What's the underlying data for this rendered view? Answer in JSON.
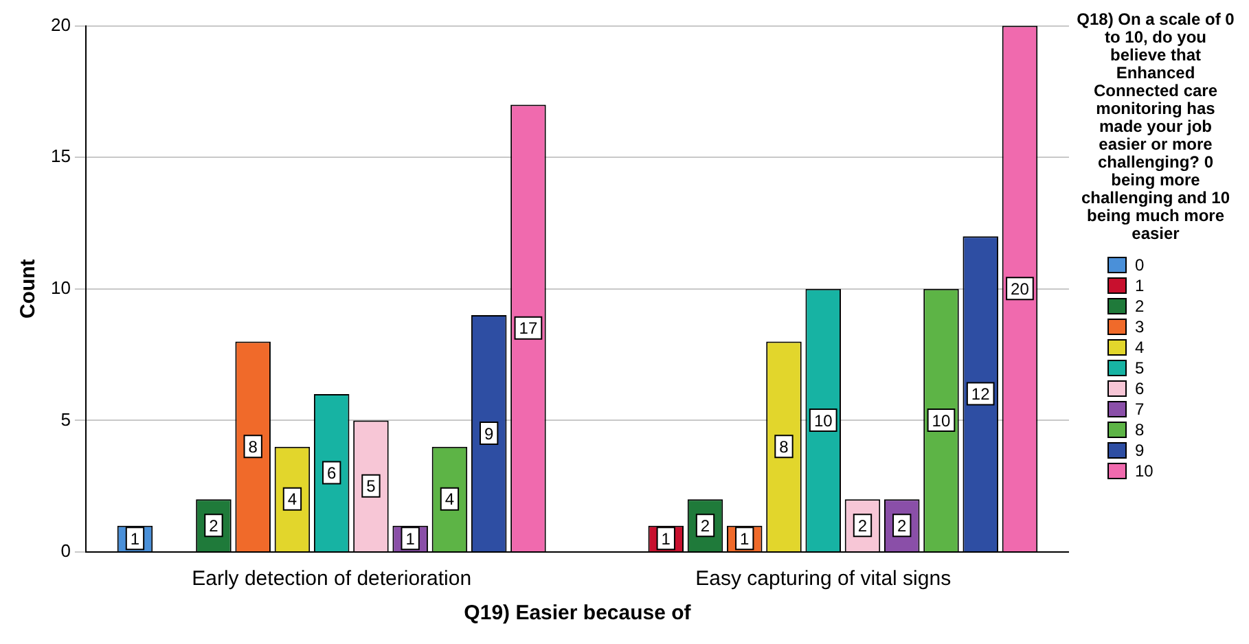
{
  "chart_data": {
    "type": "bar",
    "xlabel": "Q19) Easier because of",
    "ylabel": "Count",
    "legend_title": "Q18) On a scale of 0 to 10, do you believe that Enhanced Connected care monitoring has made your job easier or more challenging? 0 being more challenging and 10 being much more easier",
    "categories": [
      "Early detection of deterioration",
      "Easy capturing of vital signs"
    ],
    "series": [
      {
        "name": "0",
        "color": "#4a90d9",
        "values": [
          1,
          null
        ]
      },
      {
        "name": "1",
        "color": "#c8102e",
        "values": [
          null,
          1
        ]
      },
      {
        "name": "2",
        "color": "#1f7a3a",
        "values": [
          2,
          2
        ]
      },
      {
        "name": "3",
        "color": "#f06a2a",
        "values": [
          8,
          1
        ]
      },
      {
        "name": "4",
        "color": "#e2d62c",
        "values": [
          4,
          8
        ]
      },
      {
        "name": "5",
        "color": "#17b3a3",
        "values": [
          6,
          10
        ]
      },
      {
        "name": "6",
        "color": "#f7c6d6",
        "values": [
          5,
          2
        ]
      },
      {
        "name": "7",
        "color": "#8a4fa8",
        "values": [
          1,
          2
        ]
      },
      {
        "name": "8",
        "color": "#5db446",
        "values": [
          4,
          10
        ]
      },
      {
        "name": "9",
        "color": "#2e4ea3",
        "values": [
          9,
          12
        ]
      },
      {
        "name": "10",
        "color": "#f06aae",
        "values": [
          17,
          20
        ]
      }
    ],
    "ylim": [
      0,
      20
    ],
    "yticks": [
      0,
      5,
      10,
      15,
      20
    ],
    "grid": "y",
    "legend": "right",
    "data_labels": true
  }
}
